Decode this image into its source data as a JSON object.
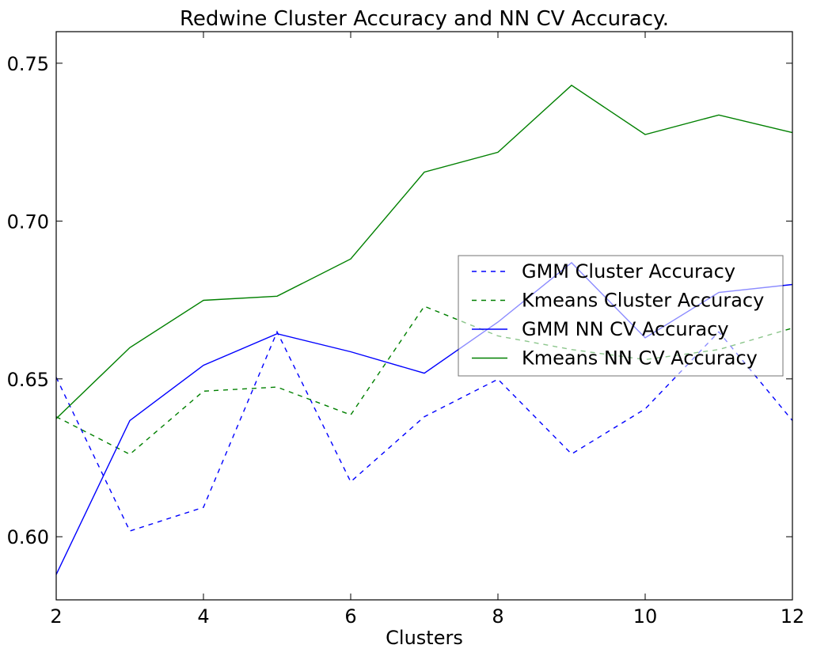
{
  "chart_data": {
    "type": "line",
    "title": "Redwine Cluster Accuracy and NN CV Accuracy.",
    "xlabel": "Clusters",
    "ylabel": "",
    "xlim": [
      2,
      12
    ],
    "ylim": [
      0.58,
      0.76
    ],
    "x": [
      2,
      3,
      4,
      5,
      6,
      7,
      8,
      9,
      10,
      11,
      12
    ],
    "x_ticks": [
      2,
      4,
      6,
      8,
      10,
      12
    ],
    "x_tick_labels": [
      "2",
      "4",
      "6",
      "8",
      "10",
      "12"
    ],
    "y_ticks": [
      0.6,
      0.65,
      0.7,
      0.75
    ],
    "y_tick_labels": [
      "0.60",
      "0.65",
      "0.70",
      "0.75"
    ],
    "grid": false,
    "legend_position": "center-right",
    "series": [
      {
        "name": "GMM Cluster Accuracy",
        "color": "#0000ff",
        "style": "dashed",
        "values": [
          0.6505,
          0.6018,
          0.6093,
          0.6649,
          0.6174,
          0.638,
          0.6499,
          0.6262,
          0.6405,
          0.6649,
          0.6368
        ]
      },
      {
        "name": "Kmeans Cluster Accuracy",
        "color": "#008000",
        "style": "dashed",
        "values": [
          0.638,
          0.6261,
          0.6461,
          0.6474,
          0.6386,
          0.673,
          0.6636,
          0.6593,
          0.6561,
          0.6593,
          0.6661
        ]
      },
      {
        "name": "GMM NN CV Accuracy",
        "color": "#0000ff",
        "style": "solid",
        "values": [
          0.588,
          0.6368,
          0.6543,
          0.6643,
          0.6586,
          0.6518,
          0.668,
          0.6868,
          0.663,
          0.6774,
          0.6799
        ]
      },
      {
        "name": "Kmeans NN CV Accuracy",
        "color": "#008000",
        "style": "solid",
        "values": [
          0.6374,
          0.6599,
          0.6749,
          0.6762,
          0.688,
          0.7155,
          0.7218,
          0.743,
          0.7274,
          0.7336,
          0.728
        ]
      }
    ]
  }
}
